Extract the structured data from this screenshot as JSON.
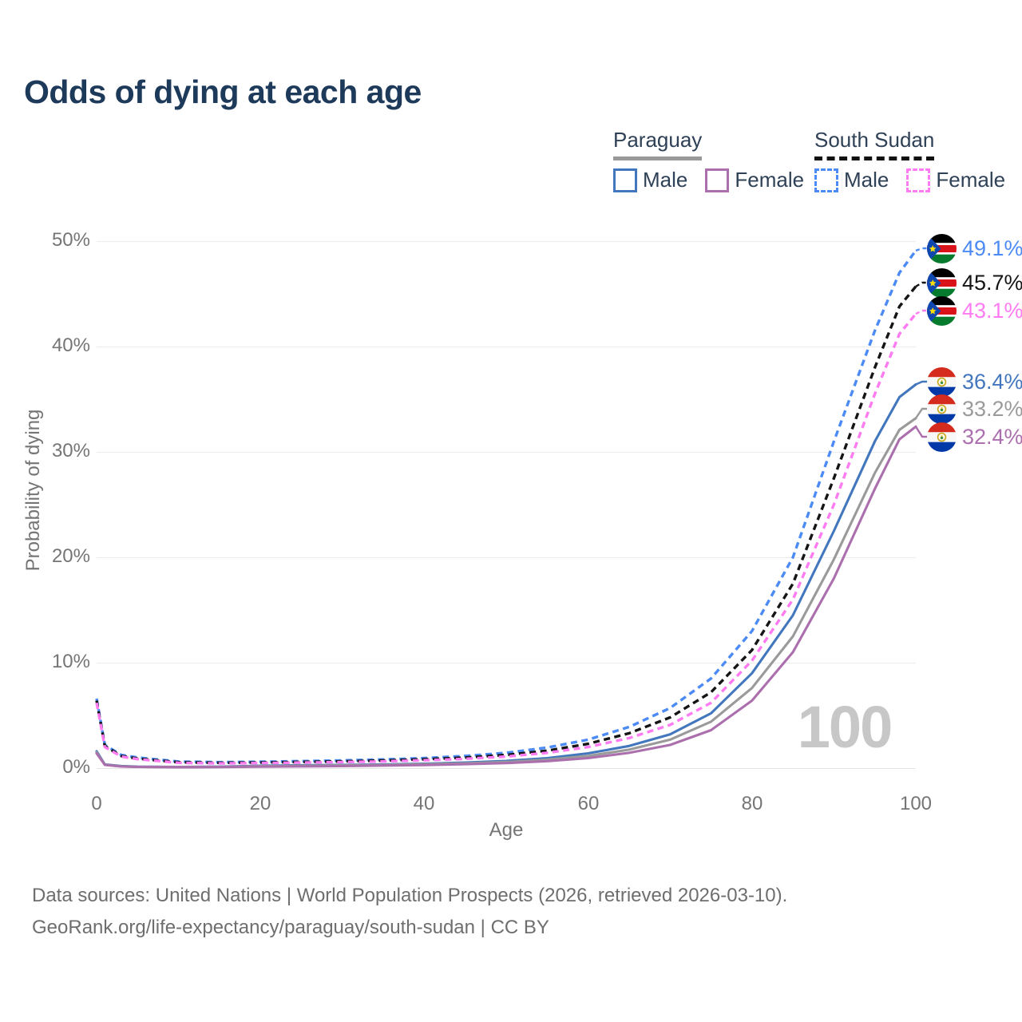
{
  "title": "Odds of dying at each age",
  "legend": {
    "groups": [
      {
        "name": "Paraguay",
        "underline_color": "#999999",
        "underline_style": "solid",
        "items": [
          {
            "label": "Male",
            "color": "#4377bd",
            "dash": false
          },
          {
            "label": "Female",
            "color": "#ab6fad",
            "dash": false
          }
        ]
      },
      {
        "name": "South Sudan",
        "underline_color": "#111111",
        "underline_style": "dashed",
        "items": [
          {
            "label": "Male",
            "color": "#4c8bf5",
            "dash": true
          },
          {
            "label": "Female",
            "color": "#ff7bf1",
            "dash": true
          }
        ]
      }
    ]
  },
  "chart_data": {
    "type": "line",
    "title": "Odds of dying at each age",
    "xlabel": "Age",
    "ylabel": "Probability of dying",
    "xlim": [
      0,
      100
    ],
    "ylim": [
      0,
      50
    ],
    "x_ticks": [
      "0",
      "20",
      "40",
      "60",
      "80",
      "100"
    ],
    "y_ticks": [
      "0%",
      "10%",
      "20%",
      "30%",
      "40%",
      "50%"
    ],
    "grid": "horizontal",
    "legend_position": "top-right",
    "watermark": "100",
    "x": [
      0,
      1,
      3,
      5,
      10,
      15,
      20,
      25,
      30,
      35,
      40,
      45,
      50,
      55,
      60,
      65,
      70,
      75,
      80,
      85,
      90,
      95,
      98,
      100
    ],
    "series": [
      {
        "name": "South Sudan Male",
        "country": "South Sudan",
        "sex": "Male",
        "color": "#4c8bf5",
        "dash": true,
        "flag": "south-sudan-flag",
        "end_label": "49.1%",
        "values": [
          6.6,
          2.2,
          1.25,
          1.0,
          0.62,
          0.56,
          0.6,
          0.66,
          0.73,
          0.82,
          0.95,
          1.15,
          1.45,
          1.95,
          2.7,
          3.9,
          5.7,
          8.5,
          13.0,
          20.0,
          31.0,
          41.5,
          47.0,
          49.1
        ]
      },
      {
        "name": "South Sudan Both sexes",
        "country": "South Sudan",
        "sex": "Both",
        "color": "#151515",
        "dash": true,
        "flag": "south-sudan-flag",
        "end_label": "45.7%",
        "values": [
          6.4,
          2.1,
          1.15,
          0.9,
          0.55,
          0.5,
          0.53,
          0.58,
          0.64,
          0.72,
          0.83,
          1.0,
          1.25,
          1.65,
          2.3,
          3.3,
          4.8,
          7.2,
          11.2,
          17.5,
          27.5,
          38.0,
          43.8,
          45.7
        ]
      },
      {
        "name": "South Sudan Female",
        "country": "South Sudan",
        "sex": "Female",
        "color": "#ff7bf1",
        "dash": true,
        "flag": "south-sudan-flag",
        "end_label": "43.1%",
        "values": [
          6.2,
          2.0,
          1.1,
          0.85,
          0.5,
          0.45,
          0.48,
          0.52,
          0.57,
          0.64,
          0.74,
          0.88,
          1.1,
          1.45,
          2.0,
          2.85,
          4.1,
          6.2,
          10.2,
          16.0,
          25.0,
          35.5,
          41.2,
          43.1
        ]
      },
      {
        "name": "Paraguay Male",
        "country": "Paraguay",
        "sex": "Male",
        "color": "#4377bd",
        "dash": false,
        "flag": "paraguay-flag",
        "end_label": "36.4%",
        "values": [
          1.6,
          0.35,
          0.2,
          0.14,
          0.11,
          0.14,
          0.22,
          0.27,
          0.3,
          0.35,
          0.42,
          0.52,
          0.68,
          0.95,
          1.4,
          2.1,
          3.2,
          5.2,
          9.0,
          14.5,
          22.5,
          31.0,
          35.2,
          36.4
        ]
      },
      {
        "name": "Paraguay Both sexes",
        "country": "Paraguay",
        "sex": "Both",
        "color": "#9a9a9a",
        "dash": false,
        "flag": "paraguay-flag",
        "end_label": "33.2%",
        "values": [
          1.5,
          0.32,
          0.17,
          0.12,
          0.1,
          0.12,
          0.18,
          0.22,
          0.26,
          0.3,
          0.36,
          0.45,
          0.58,
          0.8,
          1.15,
          1.75,
          2.7,
          4.4,
          7.6,
          12.5,
          19.8,
          28.0,
          32.1,
          33.2
        ]
      },
      {
        "name": "Paraguay Female",
        "country": "Paraguay",
        "sex": "Female",
        "color": "#ab6fad",
        "dash": false,
        "flag": "paraguay-flag",
        "end_label": "32.4%",
        "values": [
          1.4,
          0.3,
          0.15,
          0.11,
          0.08,
          0.1,
          0.14,
          0.17,
          0.2,
          0.24,
          0.29,
          0.37,
          0.48,
          0.66,
          0.95,
          1.45,
          2.2,
          3.6,
          6.4,
          11.0,
          18.0,
          26.5,
          31.2,
          32.4
        ]
      }
    ]
  },
  "footer": {
    "line1": "Data sources: United Nations | World Population Prospects (2026, retrieved 2026-03-10).",
    "line2": "GeoRank.org/life-expectancy/paraguay/south-sudan | CC BY"
  }
}
